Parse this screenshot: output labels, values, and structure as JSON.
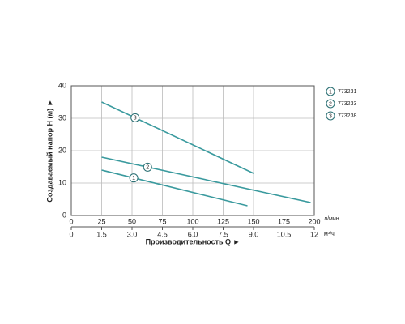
{
  "chart_data": {
    "type": "line",
    "y_label": "Создаваемый напор H (м) ►",
    "x_label": "Производительность Q ►",
    "x_unit": "л/мин",
    "x2_unit": "м³/ч",
    "xlim": [
      0,
      200
    ],
    "xticks": [
      0,
      25,
      50,
      75,
      100,
      125,
      150,
      175,
      200
    ],
    "x2lim": [
      0,
      12
    ],
    "x2ticks": [
      0,
      1.5,
      {
        "value": 3,
        "label": "3.0"
      },
      4.5,
      {
        "value": 6,
        "label": "6.0"
      },
      7.5,
      {
        "value": 9,
        "label": "9.0"
      },
      10.5,
      12
    ],
    "ylim": [
      0,
      40
    ],
    "yticks": [
      0,
      10,
      20,
      30,
      40
    ],
    "grid": true,
    "series": [
      {
        "marker": "1",
        "name": "773231",
        "color": "#3a9a9e",
        "x": [
          25,
          145
        ],
        "values": [
          14,
          3
        ]
      },
      {
        "marker": "2",
        "name": "773233",
        "color": "#3a9a9e",
        "x": [
          25,
          197
        ],
        "values": [
          18,
          4
        ]
      },
      {
        "marker": "3",
        "name": "773238",
        "color": "#3a9a9e",
        "x": [
          25,
          150
        ],
        "values": [
          35,
          13
        ]
      }
    ]
  }
}
